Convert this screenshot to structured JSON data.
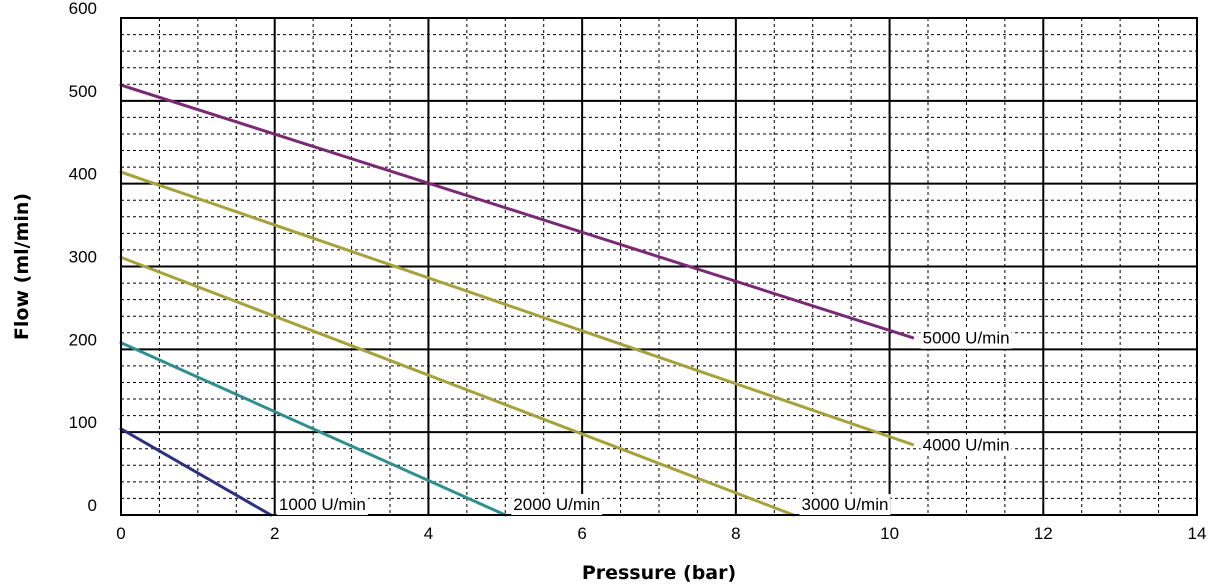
{
  "chart_data": {
    "type": "line",
    "title": "",
    "xlabel": "Pressure (bar)",
    "ylabel": "Flow (ml/min)",
    "xlim": [
      0,
      14
    ],
    "ylim": [
      0,
      600
    ],
    "x_ticks": [
      "0",
      "2",
      "4",
      "6",
      "8",
      "10",
      "12",
      "14"
    ],
    "y_ticks": [
      "0",
      "100",
      "200",
      "300",
      "400",
      "500",
      "600"
    ],
    "grid": true,
    "legend": "none",
    "series": [
      {
        "name": "1000 U/min",
        "color": "#2e2f80",
        "x": [
          0,
          1.95
        ],
        "y": [
          104,
          0
        ]
      },
      {
        "name": "2000 U/min",
        "color": "#2f8f8f",
        "x": [
          0,
          5.0
        ],
        "y": [
          208,
          0
        ]
      },
      {
        "name": "3000 U/min",
        "color": "#a6a23b",
        "x": [
          0,
          8.75
        ],
        "y": [
          311,
          0
        ]
      },
      {
        "name": "4000 U/min",
        "color": "#a6a23b",
        "x": [
          0,
          10.3
        ],
        "y": [
          414,
          85
        ]
      },
      {
        "name": "5000 U/min",
        "color": "#7a2a72",
        "x": [
          0,
          10.3
        ],
        "y": [
          519,
          214
        ]
      }
    ]
  }
}
